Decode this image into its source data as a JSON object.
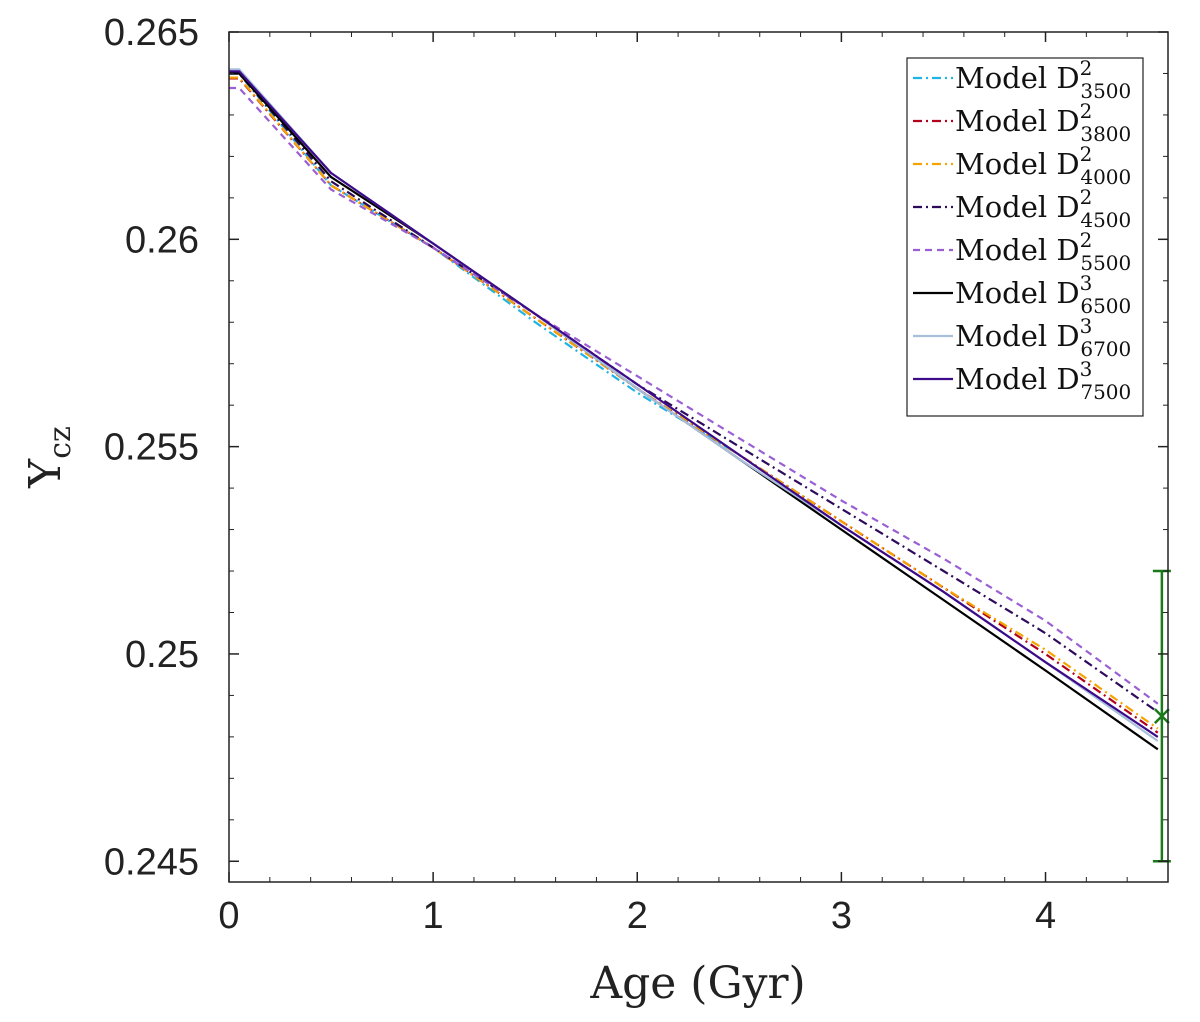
{
  "chart_data": {
    "type": "line",
    "xlabel": "Age (Gyr)",
    "ylabel": "Y",
    "ylabel_sub": "cz",
    "xlim": [
      0,
      4.6
    ],
    "ylim": [
      0.2445,
      0.265
    ],
    "xticks": [
      0,
      1,
      2,
      3,
      4
    ],
    "xtick_labels": [
      "0",
      "1",
      "2",
      "3",
      "4"
    ],
    "yticks": [
      0.245,
      0.25,
      0.255,
      0.26,
      0.265
    ],
    "ytick_labels": [
      "0.245",
      "0.25",
      "0.255",
      "0.26",
      "0.265"
    ],
    "grid": false,
    "legend_position": "top-right",
    "series": [
      {
        "label": "Model D",
        "sup": "2",
        "sub": "3500",
        "color": "#1fb4e6",
        "dash": "dashdot",
        "x": [
          0.0,
          0.05,
          0.5,
          1.0,
          1.5,
          2.0,
          2.5
        ],
        "y": [
          0.264,
          0.264,
          0.2613,
          0.2598,
          0.258,
          0.2563,
          0.2548
        ]
      },
      {
        "label": "Model D",
        "sup": "2",
        "sub": "3800",
        "color": "#b3001b",
        "dash": "dashdot",
        "x": [
          0.0,
          0.05,
          0.5,
          1.0,
          1.5,
          2.0,
          2.5,
          3.0,
          3.5,
          4.0,
          4.55
        ],
        "y": [
          0.26388,
          0.26388,
          0.2613,
          0.2598,
          0.2581,
          0.2564,
          0.2548,
          0.2532,
          0.2516,
          0.25,
          0.2481
        ]
      },
      {
        "label": "Model D",
        "sup": "2",
        "sub": "4000",
        "color": "#f5a300",
        "dash": "dashdot",
        "x": [
          0.0,
          0.05,
          0.5,
          1.0,
          1.5,
          2.0,
          2.5,
          3.0,
          3.5,
          4.0,
          4.55
        ],
        "y": [
          0.2639,
          0.2639,
          0.2613,
          0.2598,
          0.2581,
          0.2564,
          0.2548,
          0.2532,
          0.2516,
          0.2501,
          0.2482
        ]
      },
      {
        "label": "Model D",
        "sup": "2",
        "sub": "4500",
        "color": "#2e0a5c",
        "dash": "dashdot",
        "x": [
          0.0,
          0.05,
          0.5,
          1.0,
          1.5,
          2.0,
          2.5,
          3.0,
          3.5,
          4.0,
          4.55
        ],
        "y": [
          0.264,
          0.264,
          0.2614,
          0.2598,
          0.2582,
          0.2565,
          0.255,
          0.2535,
          0.252,
          0.2505,
          0.2486
        ]
      },
      {
        "label": "Model D",
        "sup": "2",
        "sub": "5500",
        "color": "#9b5fd4",
        "dash": "dash",
        "x": [
          0.0,
          0.05,
          0.5,
          1.0,
          1.5,
          2.0,
          2.5,
          3.0,
          3.5,
          4.0,
          4.55
        ],
        "y": [
          0.26365,
          0.26365,
          0.2612,
          0.2598,
          0.2582,
          0.2567,
          0.2552,
          0.2537,
          0.2523,
          0.2508,
          0.2488
        ]
      },
      {
        "label": "Model D",
        "sup": "3",
        "sub": "6500",
        "color": "#000000",
        "dash": "solid",
        "x": [
          0.0,
          0.05,
          0.5,
          1.0,
          1.5,
          2.0,
          2.5,
          3.0,
          3.5,
          4.0,
          4.55
        ],
        "y": [
          0.264,
          0.264,
          0.2615,
          0.2599,
          0.2582,
          0.2564,
          0.2547,
          0.253,
          0.2513,
          0.2496,
          0.2477
        ]
      },
      {
        "label": "Model D",
        "sup": "3",
        "sub": "6700",
        "color": "#a8bfdc",
        "dash": "solid",
        "x": [
          0.0,
          0.05,
          0.5,
          1.0,
          1.5,
          2.0,
          2.5,
          3.0,
          3.5,
          4.0,
          4.55
        ],
        "y": [
          0.2641,
          0.2641,
          0.2616,
          0.2599,
          0.2582,
          0.2564,
          0.2547,
          0.2531,
          0.2515,
          0.2498,
          0.2479
        ]
      },
      {
        "label": "Model D",
        "sup": "3",
        "sub": "7500",
        "color": "#3d0a8a",
        "dash": "solid",
        "x": [
          0.0,
          0.05,
          0.5,
          1.0,
          1.5,
          2.0,
          2.5,
          3.0,
          3.5,
          4.0,
          4.55
        ],
        "y": [
          0.26405,
          0.26405,
          0.2616,
          0.2599,
          0.2582,
          0.2565,
          0.2548,
          0.2531,
          0.2515,
          0.2498,
          0.248
        ]
      }
    ],
    "observation": {
      "x": 4.57,
      "y": 0.2485,
      "ymin": 0.245,
      "ymax": 0.252,
      "color": "#1a7a1a",
      "marker": "x"
    }
  }
}
